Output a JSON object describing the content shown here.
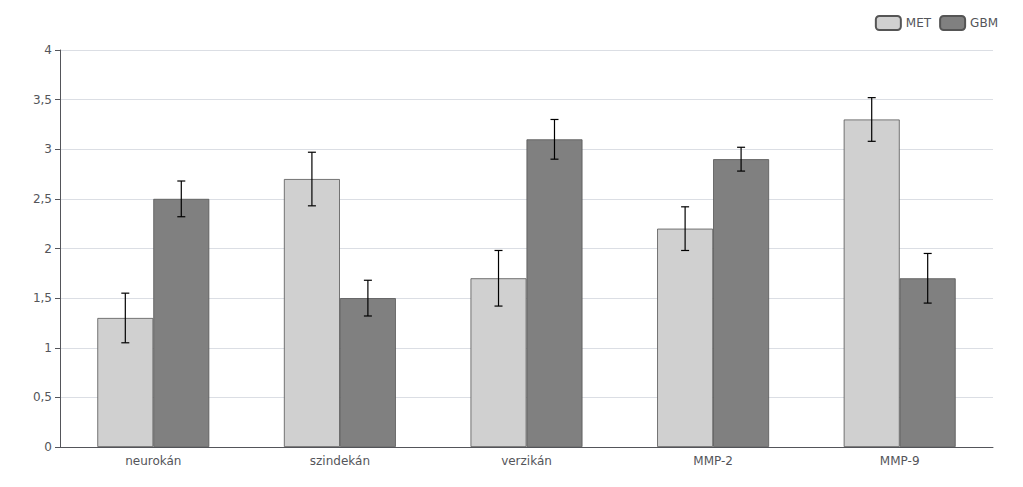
{
  "chart_data": {
    "type": "bar",
    "categories": [
      "neurokán",
      "szindekán",
      "verzikán",
      "MMP-2",
      "MMP-9"
    ],
    "series": [
      {
        "name": "MET",
        "color": "#d0d0d0",
        "values": [
          1.3,
          2.7,
          1.7,
          2.2,
          3.3
        ],
        "errors": [
          0.25,
          0.27,
          0.28,
          0.22,
          0.22
        ]
      },
      {
        "name": "GBM",
        "color": "#808080",
        "values": [
          2.5,
          1.5,
          3.1,
          2.9,
          1.7
        ],
        "errors": [
          0.18,
          0.18,
          0.2,
          0.12,
          0.25
        ]
      }
    ],
    "ylim": [
      0,
      4.0
    ],
    "yticks": [
      0,
      {
        "value": 0.5,
        "label": "0,5"
      },
      1,
      {
        "value": 1.5,
        "label": "1,5"
      },
      2,
      {
        "value": 2.5,
        "label": "2,5"
      },
      3,
      {
        "value": 3.5,
        "label": "3,5"
      },
      4
    ],
    "grid": true,
    "legend": "upper right"
  }
}
